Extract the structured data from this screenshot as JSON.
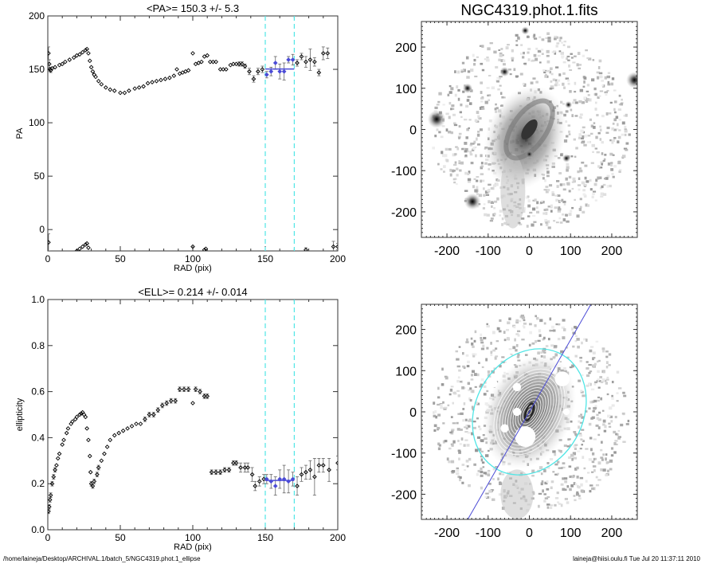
{
  "chart_data": [
    {
      "type": "scatter",
      "title": "<PA>= 150.3 +/-   5.3",
      "xlabel": "RAD (pix)",
      "ylabel": "PA",
      "xlim": [
        0,
        200
      ],
      "ylim": [
        -20,
        200
      ],
      "xticks": [
        "0",
        "50",
        "100",
        "150",
        "200"
      ],
      "yticks": [
        "0",
        "50",
        "100",
        "150",
        "200"
      ],
      "points": [
        [
          0.5,
          165,
          6
        ],
        [
          1,
          155,
          4
        ],
        [
          1.5,
          150,
          2
        ],
        [
          2,
          149,
          2
        ],
        [
          3,
          151,
          1
        ],
        [
          5,
          152,
          1
        ],
        [
          8,
          154,
          1
        ],
        [
          10,
          155,
          1
        ],
        [
          12,
          157,
          1
        ],
        [
          15,
          159,
          1
        ],
        [
          18,
          161,
          1
        ],
        [
          20,
          163,
          1
        ],
        [
          22,
          164,
          1
        ],
        [
          24,
          166,
          1
        ],
        [
          26,
          168,
          1
        ],
        [
          27,
          169,
          1
        ],
        [
          28,
          165,
          1
        ],
        [
          29,
          158,
          1
        ],
        [
          30,
          152,
          1
        ],
        [
          31,
          148,
          1
        ],
        [
          32,
          145,
          1
        ],
        [
          33,
          143,
          1
        ],
        [
          35,
          139,
          1
        ],
        [
          37,
          136,
          1
        ],
        [
          40,
          133,
          1
        ],
        [
          43,
          131,
          1
        ],
        [
          46,
          130,
          1
        ],
        [
          50,
          128,
          1
        ],
        [
          53,
          128,
          1
        ],
        [
          56,
          130,
          1
        ],
        [
          60,
          132,
          1
        ],
        [
          63,
          133,
          1
        ],
        [
          66,
          134,
          1
        ],
        [
          69,
          137,
          1
        ],
        [
          72,
          138,
          1
        ],
        [
          75,
          139,
          1
        ],
        [
          78,
          140,
          1
        ],
        [
          81,
          141,
          1
        ],
        [
          84,
          142,
          1
        ],
        [
          87,
          144,
          1
        ],
        [
          89,
          150,
          1
        ],
        [
          91,
          146,
          1
        ],
        [
          93,
          147,
          1
        ],
        [
          95,
          148,
          1
        ],
        [
          97,
          149,
          1
        ],
        [
          100,
          165,
          1
        ],
        [
          102,
          155,
          1
        ],
        [
          104,
          156,
          1
        ],
        [
          106,
          157,
          1
        ],
        [
          108,
          162,
          1
        ],
        [
          110,
          163,
          1
        ],
        [
          112,
          157,
          1
        ],
        [
          114,
          157,
          1
        ],
        [
          116,
          157,
          1
        ],
        [
          119,
          150,
          1
        ],
        [
          121,
          150,
          1
        ],
        [
          123,
          150,
          1
        ],
        [
          126,
          154,
          1
        ],
        [
          128,
          155,
          1
        ],
        [
          130,
          155,
          1
        ],
        [
          132,
          155,
          2
        ],
        [
          134,
          155,
          2
        ],
        [
          136,
          153,
          2
        ],
        [
          139,
          148,
          3
        ],
        [
          142,
          141,
          3
        ],
        [
          145,
          148,
          3
        ],
        [
          148,
          150,
          3
        ],
        [
          151,
          145,
          3
        ],
        [
          154,
          148,
          4
        ],
        [
          157,
          156,
          6
        ],
        [
          160,
          148,
          7
        ],
        [
          163,
          148,
          8
        ],
        [
          166,
          159,
          3
        ],
        [
          169,
          159,
          5
        ],
        [
          172,
          156,
          3
        ],
        [
          175,
          162,
          3
        ],
        [
          178,
          157,
          5
        ],
        [
          181,
          159,
          10
        ],
        [
          184,
          157,
          4
        ],
        [
          187,
          147,
          3
        ],
        [
          190,
          165,
          6
        ],
        [
          193,
          165,
          5
        ],
        [
          0.5,
          -12,
          8
        ],
        [
          20,
          -20,
          1
        ],
        [
          22,
          -18,
          1
        ],
        [
          24,
          -16,
          1
        ],
        [
          26,
          -14,
          1
        ],
        [
          27,
          -13,
          1
        ],
        [
          28,
          -17,
          1
        ],
        [
          100,
          -16,
          1
        ],
        [
          108,
          -19,
          1
        ],
        [
          109,
          -18,
          1
        ],
        [
          178,
          -19,
          2
        ],
        [
          197,
          -16,
          5
        ],
        [
          200,
          -16,
          3
        ]
      ],
      "fit": {
        "value": 150.3,
        "error": 5.3,
        "range": [
          150,
          170
        ]
      },
      "markers": [
        150,
        170
      ],
      "colors": {
        "points": "#000000",
        "fit": "#4b4bd6",
        "markers": "#50e6e6"
      }
    },
    {
      "type": "scatter",
      "title": "<ELL>= 0.214 +/-  0.014",
      "xlabel": "RAD (pix)",
      "ylabel": "ellipticity",
      "xlim": [
        0,
        200
      ],
      "ylim": [
        0,
        1
      ],
      "xticks": [
        "0",
        "50",
        "100",
        "150",
        "200"
      ],
      "yticks": [
        "0.0",
        "0.2",
        "0.4",
        "0.6",
        "0.8",
        "1.0"
      ],
      "points": [
        [
          0.5,
          0.08,
          0.01
        ],
        [
          1,
          0.1,
          0.01
        ],
        [
          1.5,
          0.13,
          0.01
        ],
        [
          2,
          0.15,
          0.01
        ],
        [
          3,
          0.2,
          0.01
        ],
        [
          4,
          0.23,
          0.01
        ],
        [
          5,
          0.26,
          0.01
        ],
        [
          6,
          0.28,
          0.005
        ],
        [
          7,
          0.31,
          0.005
        ],
        [
          8,
          0.33,
          0.005
        ],
        [
          10,
          0.37,
          0.005
        ],
        [
          11,
          0.39,
          0.005
        ],
        [
          13,
          0.42,
          0.005
        ],
        [
          14,
          0.44,
          0.005
        ],
        [
          16,
          0.46,
          0.005
        ],
        [
          17,
          0.47,
          0.005
        ],
        [
          19,
          0.48,
          0.005
        ],
        [
          20,
          0.49,
          0.005
        ],
        [
          22,
          0.5,
          0.005
        ],
        [
          23,
          0.505,
          0.005
        ],
        [
          24,
          0.51,
          0.005
        ],
        [
          25,
          0.5,
          0.005
        ],
        [
          26,
          0.49,
          0.005
        ],
        [
          27,
          0.44,
          0.005
        ],
        [
          28,
          0.39,
          0.005
        ],
        [
          29,
          0.32,
          0.005
        ],
        [
          29.5,
          0.25,
          0.005
        ],
        [
          30,
          0.2,
          0.01
        ],
        [
          31,
          0.19,
          0.01
        ],
        [
          32,
          0.21,
          0.01
        ],
        [
          34,
          0.24,
          0.01
        ],
        [
          35,
          0.27,
          0.01
        ],
        [
          37,
          0.3,
          0.005
        ],
        [
          39,
          0.33,
          0.005
        ],
        [
          41,
          0.36,
          0.005
        ],
        [
          43,
          0.39,
          0.005
        ],
        [
          46,
          0.41,
          0.005
        ],
        [
          49,
          0.42,
          0.005
        ],
        [
          52,
          0.43,
          0.005
        ],
        [
          55,
          0.44,
          0.005
        ],
        [
          58,
          0.45,
          0.005
        ],
        [
          61,
          0.46,
          0.005
        ],
        [
          64,
          0.46,
          0.005
        ],
        [
          67,
          0.48,
          0.01
        ],
        [
          70,
          0.5,
          0.01
        ],
        [
          73,
          0.5,
          0.01
        ],
        [
          76,
          0.52,
          0.01
        ],
        [
          79,
          0.54,
          0.01
        ],
        [
          82,
          0.55,
          0.01
        ],
        [
          85,
          0.56,
          0.01
        ],
        [
          88,
          0.56,
          0.01
        ],
        [
          91,
          0.61,
          0.01
        ],
        [
          94,
          0.61,
          0.01
        ],
        [
          97,
          0.61,
          0.01
        ],
        [
          100,
          0.55,
          0.005
        ],
        [
          102,
          0.61,
          0.01
        ],
        [
          105,
          0.6,
          0.01
        ],
        [
          108,
          0.58,
          0.01
        ],
        [
          110,
          0.58,
          0.01
        ],
        [
          113,
          0.25,
          0.01
        ],
        [
          116,
          0.25,
          0.01
        ],
        [
          119,
          0.25,
          0.01
        ],
        [
          122,
          0.26,
          0.01
        ],
        [
          125,
          0.26,
          0.01
        ],
        [
          128,
          0.29,
          0.01
        ],
        [
          130,
          0.29,
          0.01
        ],
        [
          133,
          0.27,
          0.02
        ],
        [
          136,
          0.27,
          0.02
        ],
        [
          138,
          0.27,
          0.02
        ],
        [
          141,
          0.24,
          0.03
        ],
        [
          143,
          0.19,
          0.02
        ],
        [
          146,
          0.21,
          0.02
        ],
        [
          149,
          0.22,
          0.02
        ],
        [
          151,
          0.22,
          0.02
        ],
        [
          154,
          0.21,
          0.03
        ],
        [
          157,
          0.19,
          0.04
        ],
        [
          160,
          0.22,
          0.04
        ],
        [
          163,
          0.22,
          0.06
        ],
        [
          166,
          0.21,
          0.05
        ],
        [
          169,
          0.22,
          0.03
        ],
        [
          172,
          0.19,
          0.04
        ],
        [
          175,
          0.24,
          0.03
        ],
        [
          178,
          0.25,
          0.03
        ],
        [
          181,
          0.26,
          0.04
        ],
        [
          184,
          0.23,
          0.08
        ],
        [
          187,
          0.28,
          0.03
        ],
        [
          190,
          0.28,
          0.03
        ],
        [
          194,
          0.26,
          0.05
        ],
        [
          200,
          0.29,
          0.03
        ]
      ],
      "fit": {
        "value": 0.214,
        "error": 0.014,
        "range": [
          150,
          170
        ]
      },
      "markers": [
        150,
        170
      ],
      "colors": {
        "points": "#000000",
        "fit": "#4b4bd6",
        "markers": "#50e6e6"
      }
    },
    {
      "type": "heatmap",
      "title": "NGC4319.phot.1.fits",
      "xlim": [
        -262,
        262
      ],
      "ylim": [
        -262,
        262
      ],
      "xticks": [
        "-200",
        "-100",
        "0",
        "100",
        "200"
      ],
      "yticks": [
        "-200",
        "-100",
        "0",
        "100",
        "200"
      ],
      "colormap": "grayscale-inverted"
    },
    {
      "type": "heatmap",
      "title": "",
      "xlim": [
        -262,
        262
      ],
      "ylim": [
        -262,
        262
      ],
      "xticks": [
        "-200",
        "-100",
        "0",
        "100",
        "200"
      ],
      "yticks": [
        "-200",
        "-100",
        "0",
        "100",
        "200"
      ],
      "colormap": "grayscale-inverted",
      "overlays": {
        "ellipse_color": "#50e6e6",
        "pa_line_color": "#4b4bd6",
        "contour_color": "#ffffff"
      }
    }
  ],
  "footer": {
    "path": "/home/laineja/Desktop/ARCHIVAL.1/batch_5/NGC4319.phot.1_ellipse",
    "user_date": "laineja@hiisi.oulu.fi  Tue Jul 20 11:37:11 2010"
  }
}
